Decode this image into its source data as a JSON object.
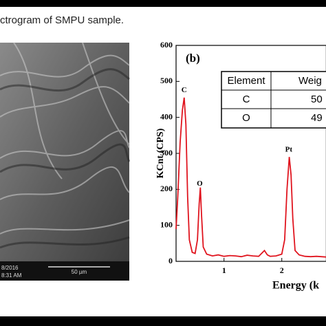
{
  "caption": "ctrogram of SMPU sample.",
  "sem_image": {
    "date": "8/2016",
    "scale": "50 µm",
    "time": "8:31 AM"
  },
  "table": {
    "header": [
      "Element",
      "Weig"
    ],
    "rows": [
      [
        "C",
        "50"
      ],
      [
        "O",
        "49"
      ]
    ]
  },
  "chart_data": {
    "type": "line",
    "panel_label": "(b)",
    "x_label": "Energy (k",
    "y_label": "KCnt (CPS)",
    "xlim": [
      0.17,
      2.77
    ],
    "ylim": [
      0,
      600
    ],
    "xticks": [
      1,
      2
    ],
    "yticks": [
      0,
      100,
      200,
      300,
      400,
      500,
      600
    ],
    "annotations": [
      {
        "text": "C",
        "x": 0.31,
        "y": 475
      },
      {
        "text": "O",
        "x": 0.58,
        "y": 215
      },
      {
        "text": "Pt",
        "x": 2.12,
        "y": 310
      }
    ],
    "series": [
      {
        "color": "#e0141e",
        "x": [
          0.17,
          0.2,
          0.24,
          0.28,
          0.31,
          0.34,
          0.37,
          0.4,
          0.45,
          0.5,
          0.54,
          0.57,
          0.59,
          0.61,
          0.64,
          0.7,
          0.8,
          0.9,
          1.0,
          1.1,
          1.2,
          1.3,
          1.4,
          1.5,
          1.6,
          1.65,
          1.7,
          1.75,
          1.8,
          1.9,
          2.0,
          2.05,
          2.09,
          2.13,
          2.16,
          2.19,
          2.23,
          2.3,
          2.4,
          2.5,
          2.6,
          2.77
        ],
        "values": [
          90,
          180,
          330,
          420,
          455,
          380,
          180,
          60,
          25,
          22,
          60,
          160,
          205,
          130,
          40,
          20,
          15,
          18,
          14,
          16,
          15,
          13,
          17,
          15,
          14,
          22,
          30,
          18,
          14,
          15,
          20,
          60,
          200,
          290,
          240,
          120,
          30,
          18,
          14,
          13,
          14,
          12
        ]
      }
    ]
  }
}
